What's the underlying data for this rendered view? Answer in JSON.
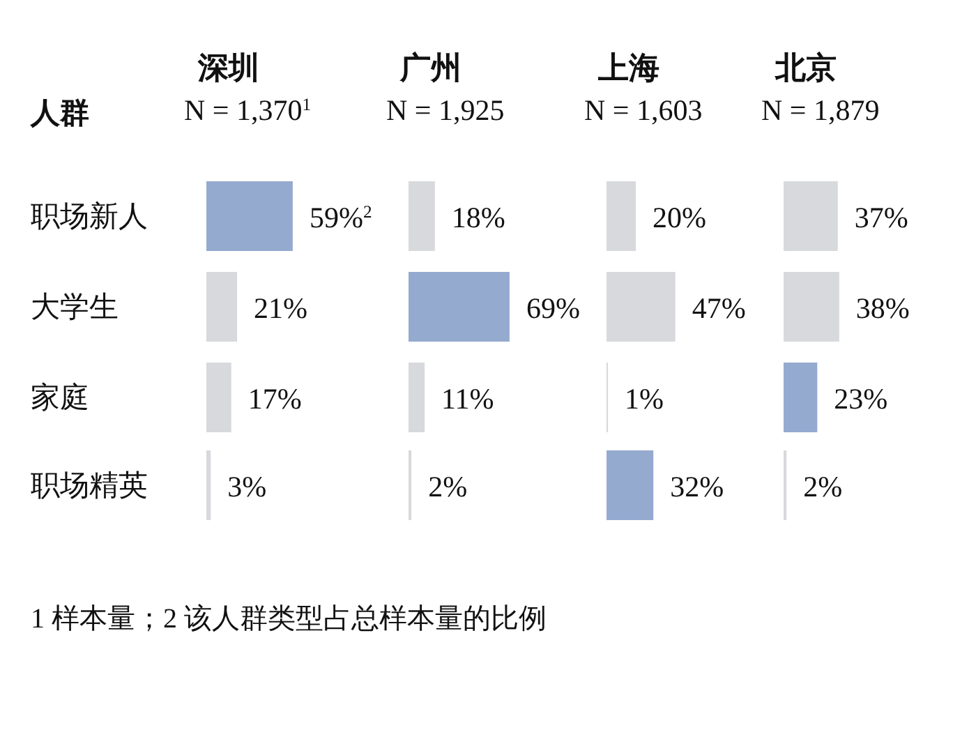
{
  "chart_data": [
    {
      "type": "bar",
      "orientation": "horizontal",
      "title": "深圳",
      "subtitle": "N = 1,370$^{1}$",
      "ylabel": "人群",
      "tick_labels": "y",
      "categories": [
        "职场新人",
        "大学生",
        "家庭",
        "职场精英"
      ],
      "values": [
        59,
        21,
        17,
        3
      ],
      "colors": [
        "#95aacf",
        "#d8d9dc",
        "#d8d9dc",
        "#d8d9dc"
      ],
      "value_labels": [
        "59%$^{2}$",
        "21%",
        "17%",
        "3%"
      ],
      "annotations": [
        "1 样本量；2 该人群类型占总样本量的比例"
      ]
    },
    {
      "type": "bar",
      "orientation": "horizontal",
      "title": "广州",
      "subtitle": "N = 1,925",
      "tick_labels": false,
      "categories": [
        null,
        null,
        null,
        null
      ],
      "values": [
        18,
        69,
        11,
        2
      ],
      "colors": [
        "#d8d9dc",
        "#95aacf",
        "#d8d9dc",
        "#d8d9dc"
      ],
      "value_labels": [
        "18%",
        "69%",
        "11%",
        "2%"
      ]
    },
    {
      "type": "bar",
      "orientation": "horizontal",
      "title": "上海",
      "subtitle": "N = 1,603",
      "tick_labels": false,
      "categories": [
        null,
        null,
        null,
        null
      ],
      "values": [
        20,
        47,
        1,
        32
      ],
      "colors": [
        "#d8d9dc",
        "#d8d9dc",
        "#d8d9dc",
        "#95aacf"
      ],
      "value_labels": [
        "20%",
        "47%",
        "1%",
        "32%"
      ]
    },
    {
      "type": "bar",
      "orientation": "horizontal",
      "title": "北京",
      "subtitle": "N = 1,879",
      "tick_labels": false,
      "categories": [
        null,
        null,
        null,
        null
      ],
      "values": [
        37,
        38,
        23,
        2
      ],
      "colors": [
        "#d8d9dc",
        "#d8d9dc",
        "#95aacf",
        "#d8d9dc"
      ],
      "value_labels": [
        "37%",
        "38%",
        "23%",
        "2%"
      ]
    }
  ]
}
